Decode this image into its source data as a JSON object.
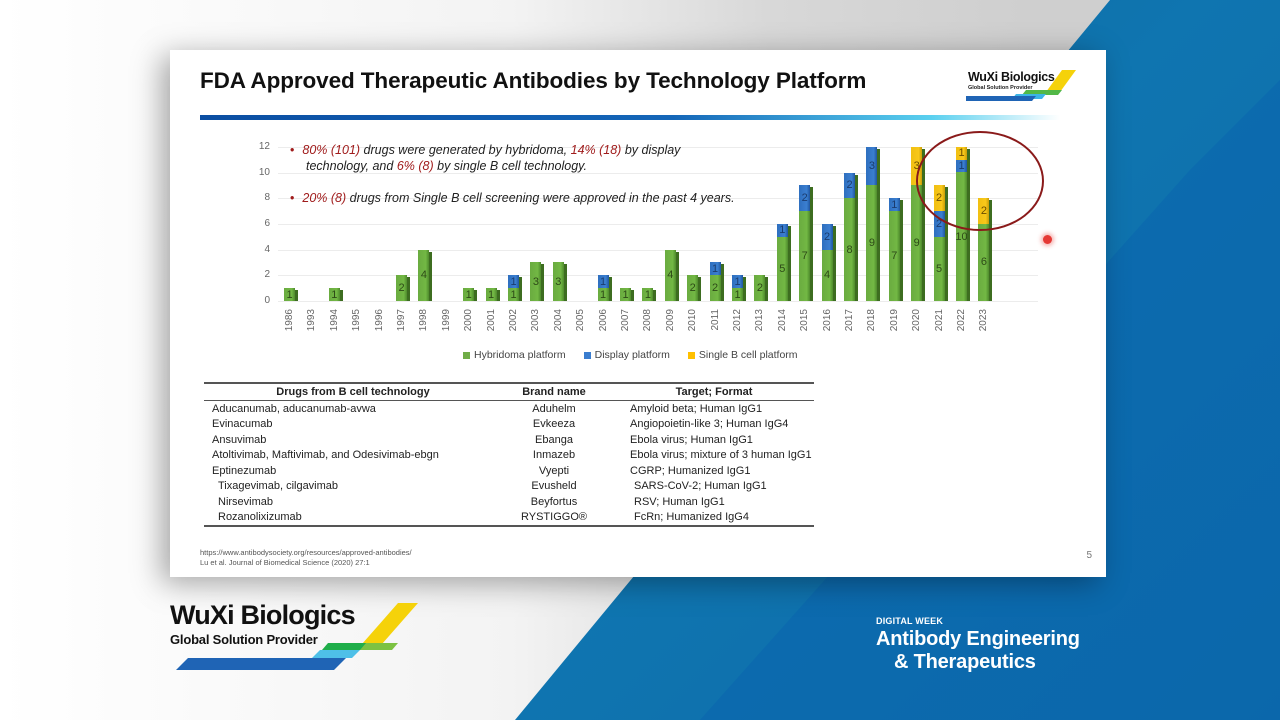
{
  "slide": {
    "title": "FDA Approved Therapeutic Antibodies by Technology Platform",
    "logo": {
      "name": "WuXi Biologics",
      "tagline": "Global Solution Provider"
    },
    "page_number": "5",
    "annotations": [
      {
        "parts": [
          {
            "text": "80% (101)",
            "emph": true
          },
          {
            "text": " drugs were generated  by hybridoma, ",
            "emph": false
          },
          {
            "text": "14% (18)",
            "emph": true
          },
          {
            "text": " by display",
            "emph": false
          }
        ],
        "line2": [
          {
            "text": "technology, and ",
            "emph": false
          },
          {
            "text": "6% (8)",
            "emph": true
          },
          {
            "text": " by single B cell technology.",
            "emph": false
          }
        ]
      },
      {
        "parts": [
          {
            "text": "20% (8)",
            "emph": true
          },
          {
            "text": " drugs from Single B cell screening were approved in the past 4 years.",
            "emph": false
          }
        ]
      }
    ],
    "references": [
      "https://www.antibodysociety.org/resources/approved-antibodies/",
      "Lu et al. Journal of Biomedical Science (2020) 27:1"
    ],
    "table": {
      "headers": [
        "Drugs from B cell technology",
        "Brand name",
        "Target; Format"
      ],
      "rows": [
        [
          "Aducanumab, aducanumab-avwa",
          "Aduhelm",
          "Amyloid beta; Human IgG1"
        ],
        [
          "Evinacumab",
          "Evkeeza",
          "Angiopoietin-like 3; Human IgG4"
        ],
        [
          "Ansuvimab",
          "Ebanga",
          "Ebola virus; Human IgG1"
        ],
        [
          "Atoltivimab, Maftivimab, and Odesivimab-ebgn",
          "Inmazeb",
          "Ebola virus; mixture of 3 human IgG1"
        ],
        [
          "Eptinezumab",
          "Vyepti",
          "CGRP; Humanized IgG1"
        ],
        [
          "Tixagevimab, cilgavimab",
          "Evusheld",
          "SARS-CoV-2; Human IgG1"
        ],
        [
          "Nirsevimab",
          "Beyfortus",
          "RSV; Human IgG1"
        ],
        [
          "Rozanolixizumab",
          "RYSTIGGO®",
          "FcRn; Humanized IgG4"
        ]
      ]
    }
  },
  "branding": {
    "logo_name": "WuXi Biologics",
    "logo_tagline": "Global Solution Provider",
    "event_eyebrow": "DIGITAL WEEK",
    "event_line1": "Antibody Engineering",
    "event_line2": "& Therapeutics"
  },
  "colors": {
    "hybridoma": "#70ad47",
    "display": "#3a7dcf",
    "single_b": "#ffc000",
    "emphasis_red": "#a01c1c",
    "brand_blue": "#0d6fb5"
  },
  "chart_data": {
    "type": "bar",
    "stacked": true,
    "title": "FDA Approved Therapeutic Antibodies by Technology Platform",
    "xlabel": "",
    "ylabel": "",
    "ylim": [
      0,
      12
    ],
    "yticks": [
      0,
      2,
      4,
      6,
      8,
      10,
      12
    ],
    "grid": true,
    "legend_position": "bottom",
    "categories": [
      "1986",
      "1993",
      "1994",
      "1995",
      "1996",
      "1997",
      "1998",
      "1999",
      "2000",
      "2001",
      "2002",
      "2003",
      "2004",
      "2005",
      "2006",
      "2007",
      "2008",
      "2009",
      "2010",
      "2011",
      "2012",
      "2013",
      "2014",
      "2015",
      "2016",
      "2017",
      "2018",
      "2019",
      "2020",
      "2021",
      "2022",
      "2023"
    ],
    "series": [
      {
        "name": "Hybridoma platform",
        "color": "#70ad47",
        "values": [
          1,
          0,
          1,
          0,
          0,
          2,
          4,
          0,
          1,
          1,
          1,
          3,
          3,
          0,
          1,
          1,
          1,
          4,
          2,
          2,
          1,
          2,
          5,
          7,
          4,
          8,
          9,
          7,
          9,
          5,
          10,
          6
        ]
      },
      {
        "name": "Display platform",
        "color": "#3a7dcf",
        "values": [
          0,
          0,
          0,
          0,
          0,
          0,
          0,
          0,
          0,
          0,
          1,
          0,
          0,
          0,
          1,
          0,
          0,
          0,
          0,
          1,
          1,
          0,
          1,
          2,
          2,
          2,
          3,
          1,
          0,
          2,
          1,
          0
        ]
      },
      {
        "name": "Single B cell platform",
        "color": "#ffc000",
        "values": [
          0,
          0,
          0,
          0,
          0,
          0,
          0,
          0,
          0,
          0,
          0,
          0,
          0,
          0,
          0,
          0,
          0,
          0,
          0,
          0,
          0,
          0,
          0,
          0,
          0,
          0,
          0,
          0,
          3,
          2,
          1,
          2
        ]
      }
    ],
    "annotations": [
      "Ellipse highlighting 2020–2023 Single B cell approvals"
    ]
  }
}
